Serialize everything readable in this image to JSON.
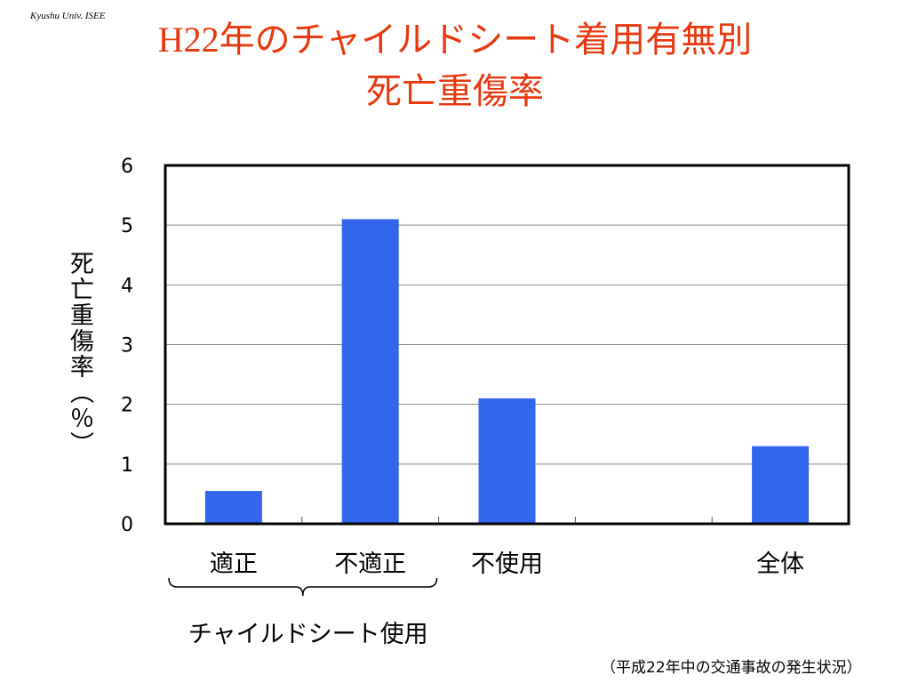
{
  "credit": "Kyushu Univ. ISEE",
  "title": {
    "line1_prefix": "H22",
    "line1_rest": "年のチャイルドシート着用有無別",
    "line2": "死亡重傷率"
  },
  "source_note": "（平成22年中の交通事故の発生状況）",
  "colors": {
    "title": "#e8380d",
    "bar": "#3366ee",
    "grid": "#888888"
  },
  "chart_data": {
    "type": "bar",
    "categories": [
      "適正",
      "不適正",
      "不使用",
      "",
      "全体"
    ],
    "values": [
      0.55,
      5.1,
      2.1,
      null,
      1.3
    ],
    "ylabel": "死亡重傷率（％）",
    "ylim": [
      0,
      6
    ],
    "yticks": [
      "0",
      "1",
      "2",
      "3",
      "4",
      "5",
      "6"
    ],
    "grid": true,
    "group_label": "チャイルドシート使用",
    "group_span": [
      "適正",
      "不適正"
    ]
  }
}
